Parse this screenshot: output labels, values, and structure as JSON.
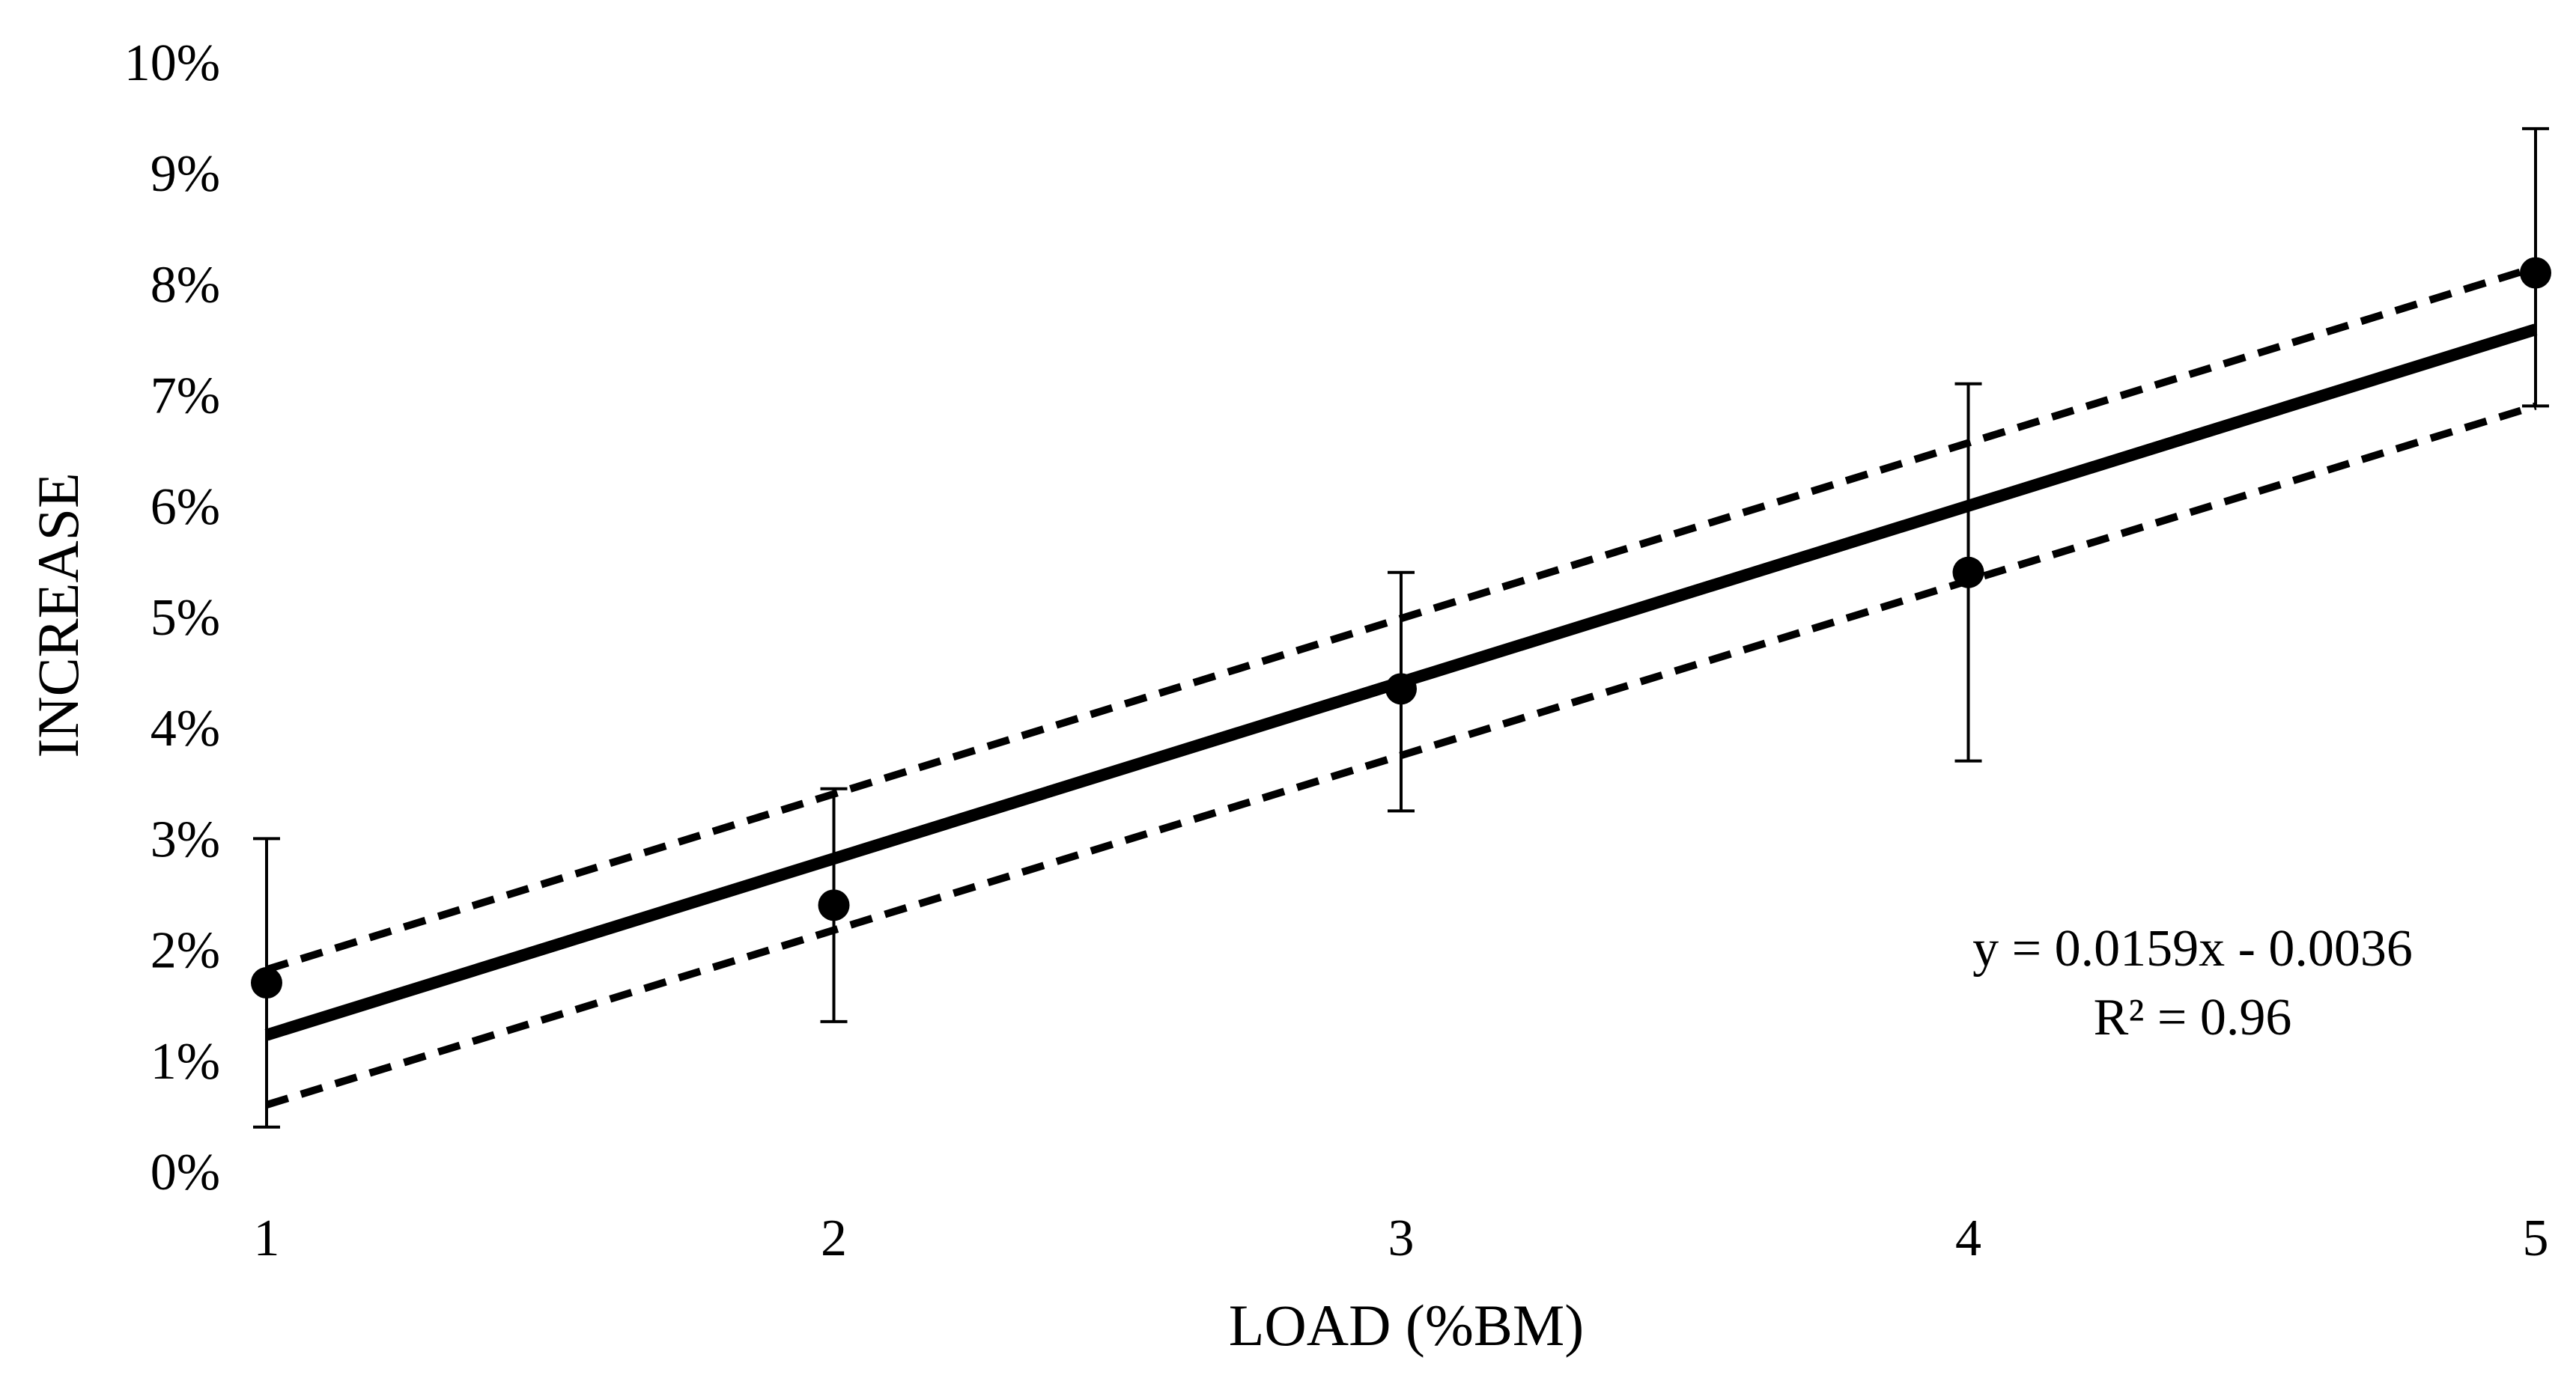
{
  "chart_data": {
    "type": "scatter",
    "title": "",
    "xlabel": "LOAD (%BM)",
    "ylabel": "INCREASE",
    "xlim": [
      1,
      5
    ],
    "ylim": [
      0,
      0.1
    ],
    "x_ticks": [
      1,
      2,
      3,
      4,
      5
    ],
    "x_tick_labels": [
      "1",
      "2",
      "3",
      "4",
      "5"
    ],
    "y_ticks": [
      0,
      0.01,
      0.02,
      0.03,
      0.04,
      0.05,
      0.06,
      0.07,
      0.08,
      0.09,
      0.1
    ],
    "y_tick_labels": [
      "0%",
      "1%",
      "2%",
      "3%",
      "4%",
      "5%",
      "6%",
      "7%",
      "8%",
      "9%",
      "10%"
    ],
    "grid": false,
    "legend": "none",
    "points": [
      {
        "x": 1,
        "y": 0.017,
        "err_low": 0.004,
        "err_high": 0.03
      },
      {
        "x": 2,
        "y": 0.024,
        "err_low": 0.0135,
        "err_high": 0.0345
      },
      {
        "x": 3,
        "y": 0.0435,
        "err_low": 0.0325,
        "err_high": 0.054
      },
      {
        "x": 4,
        "y": 0.054,
        "err_low": 0.037,
        "err_high": 0.071
      },
      {
        "x": 5,
        "y": 0.081,
        "err_low": 0.069,
        "err_high": 0.094
      }
    ],
    "trendline": {
      "slope": 0.0159,
      "intercept": -0.0036,
      "equation": "y = 0.0159x - 0.0036",
      "r_squared": "R² = 0.96"
    },
    "confidence_band": {
      "upper": [
        [
          1,
          0.0182
        ],
        [
          5,
          0.0815
        ]
      ],
      "lower": [
        [
          1,
          0.006
        ],
        [
          5,
          0.069
        ]
      ]
    },
    "colors": {
      "points": "#000000",
      "trendline": "#000000",
      "band": "#000000",
      "axis_text": "#000000"
    }
  }
}
